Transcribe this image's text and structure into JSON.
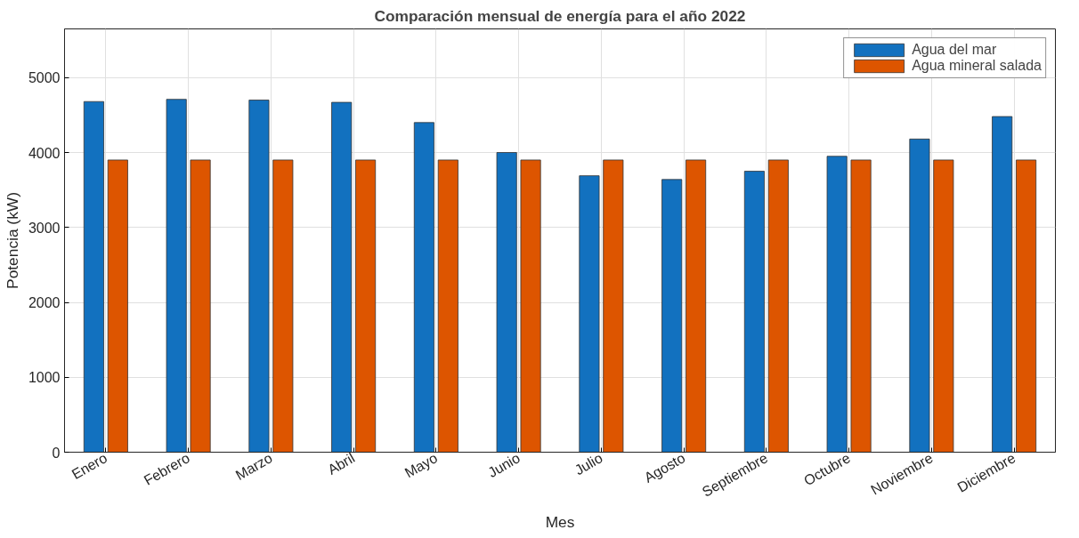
{
  "chart_data": {
    "type": "bar",
    "title": "Comparación mensual de energía para el año 2022",
    "xlabel": "Mes",
    "ylabel": "Potencia (kW)",
    "categories": [
      "Enero",
      "Febrero",
      "Marzo",
      "Abril",
      "Mayo",
      "Junio",
      "Julio",
      "Agosto",
      "Septiembre",
      "Octubre",
      "Noviembre",
      "Diciembre"
    ],
    "series": [
      {
        "name": "Agua del mar",
        "color": "#1271bf",
        "values": [
          4680,
          4710,
          4700,
          4670,
          4400,
          4000,
          3690,
          3640,
          3750,
          3950,
          4180,
          4480
        ]
      },
      {
        "name": "Agua mineral salada",
        "color": "#dd5500",
        "values": [
          3900,
          3900,
          3900,
          3900,
          3900,
          3900,
          3900,
          3900,
          3900,
          3900,
          3900,
          3900
        ]
      }
    ],
    "ylim": [
      0,
      5650
    ],
    "yticks": [
      0,
      1000,
      2000,
      3000,
      4000,
      5000
    ],
    "grid": true,
    "legend": "top right"
  }
}
